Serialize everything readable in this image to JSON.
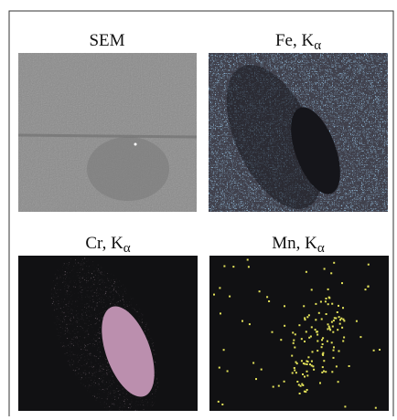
{
  "panels": [
    {
      "name": "SEM"
    },
    {
      "name": "Fe, K",
      "sub": "α"
    },
    {
      "name": "Cr, K",
      "sub": "α"
    },
    {
      "name": "Mn, K",
      "sub": "α"
    }
  ]
}
